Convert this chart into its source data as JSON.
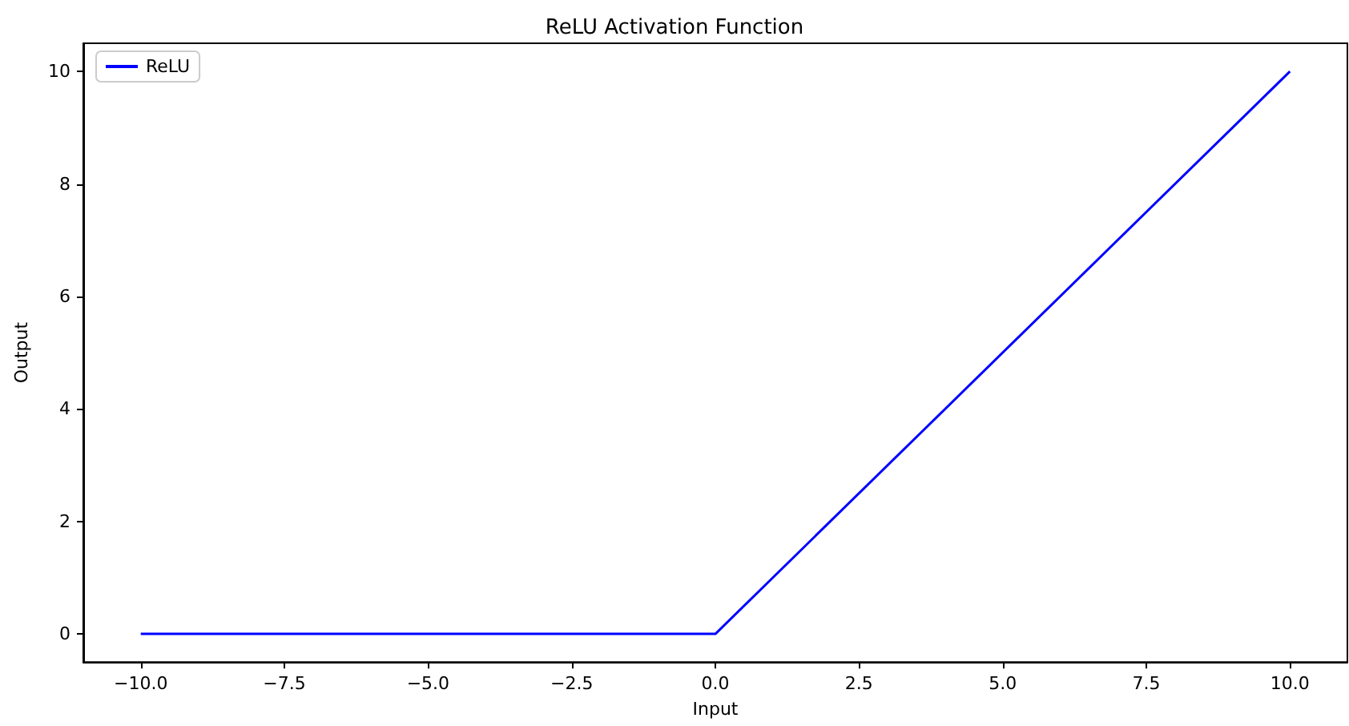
{
  "chart_data": {
    "type": "line",
    "title": "ReLU Activation Function",
    "xlabel": "Input",
    "ylabel": "Output",
    "x": [
      -10,
      0,
      10
    ],
    "series": [
      {
        "name": "ReLU",
        "color": "#0000ff",
        "values": [
          0,
          0,
          10
        ]
      }
    ],
    "xlim": [
      -11,
      11
    ],
    "xticks": [
      {
        "value": -10,
        "label": "−10.0"
      },
      {
        "value": -7.5,
        "label": "−7.5"
      },
      {
        "value": -5,
        "label": "−5.0"
      },
      {
        "value": -2.5,
        "label": "−2.5"
      },
      {
        "value": 0,
        "label": "0.0"
      },
      {
        "value": 2.5,
        "label": "2.5"
      },
      {
        "value": 5,
        "label": "5.0"
      },
      {
        "value": 7.5,
        "label": "7.5"
      },
      {
        "value": 10,
        "label": "10.0"
      }
    ],
    "ylim": [
      -0.5,
      10.5
    ],
    "yticks": [
      0,
      2,
      4,
      6,
      8,
      10
    ],
    "grid": false,
    "legend": "top left",
    "marker": "none",
    "line_style": "solid"
  }
}
